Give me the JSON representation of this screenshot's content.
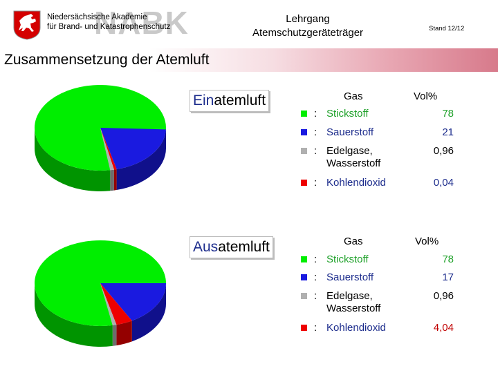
{
  "header": {
    "org_line1": "Niedersächsische Akademie",
    "org_line2": "für Brand- und Katastrophenschutz",
    "watermark": "NABK",
    "course_line1": "Lehrgang",
    "course_line2": "Atemschutzgeräteträger",
    "stand": "Stand 12/12"
  },
  "title": "Zusammensetzung der Atemluft",
  "inhale": {
    "label_prefix": "Ein",
    "label_suffix": "atemluft",
    "col_gas": "Gas",
    "col_vol": "Vol%",
    "rows": [
      {
        "colon": ":",
        "gas": "Stickstoff",
        "value": "78"
      },
      {
        "colon": ":",
        "gas": "Sauerstoff",
        "value": "21"
      },
      {
        "colon": ":",
        "gas": "Edelgase, Wasserstoff",
        "value": "0,96"
      },
      {
        "colon": ":",
        "gas": "Kohlendioxid",
        "value": "0,04"
      }
    ]
  },
  "exhale": {
    "label_prefix": "Aus",
    "label_suffix": "atemluft",
    "col_gas": "Gas",
    "col_vol": "Vol%",
    "rows": [
      {
        "colon": ":",
        "gas": "Stickstoff",
        "value": "78"
      },
      {
        "colon": ":",
        "gas": "Sauerstoff",
        "value": "17"
      },
      {
        "colon": ":",
        "gas": "Edelgase, Wasserstoff",
        "value": "0,96"
      },
      {
        "colon": ":",
        "gas": "Kohlendioxid",
        "value": "4,04"
      }
    ]
  },
  "colors": {
    "nitrogen": "#00ee00",
    "oxygen": "#1a1ae0",
    "noble": "#b0b0b0",
    "co2": "#ee0000",
    "nitrogen_text": "#1fa12a",
    "oxygen_text": "#1c2c8c",
    "co2_text": "#c00000"
  },
  "chart_data": [
    {
      "type": "pie",
      "title": "Einatemluft",
      "categories": [
        "Stickstoff",
        "Sauerstoff",
        "Edelgase, Wasserstoff",
        "Kohlendioxid"
      ],
      "values": [
        78,
        21,
        0.96,
        0.04
      ]
    },
    {
      "type": "pie",
      "title": "Ausatemluft",
      "categories": [
        "Stickstoff",
        "Sauerstoff",
        "Edelgase, Wasserstoff",
        "Kohlendioxid"
      ],
      "values": [
        78,
        17,
        0.96,
        4.04
      ]
    }
  ]
}
